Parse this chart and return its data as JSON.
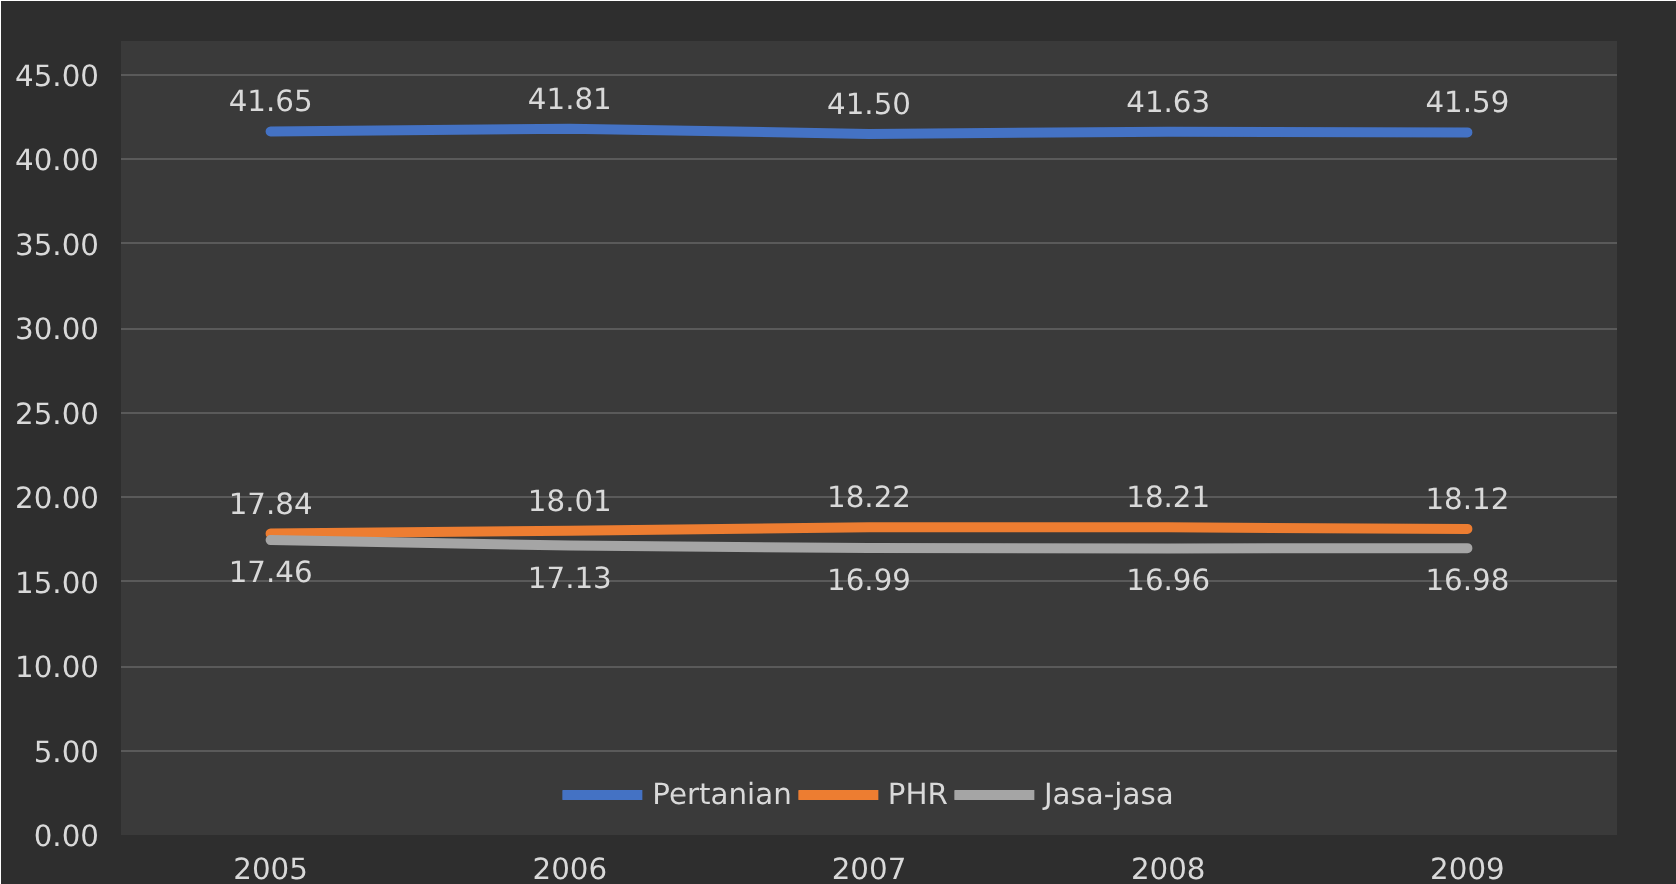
{
  "chart_data": {
    "type": "line",
    "categories": [
      "2005",
      "2006",
      "2007",
      "2008",
      "2009"
    ],
    "series": [
      {
        "name": "Pertanian",
        "color": "#4472c4",
        "values": [
          41.65,
          41.81,
          41.5,
          41.63,
          41.59
        ],
        "value_labels": [
          "41.65",
          "41.81",
          "41.50",
          "41.63",
          "41.59"
        ]
      },
      {
        "name": "PHR",
        "color": "#ed7d31",
        "values": [
          17.84,
          18.01,
          18.22,
          18.21,
          18.12
        ],
        "value_labels": [
          "17.84",
          "18.01",
          "18.22",
          "18.21",
          "18.12"
        ]
      },
      {
        "name": "Jasa-jasa",
        "color": "#a5a5a5",
        "values": [
          17.46,
          17.13,
          16.99,
          16.96,
          16.98
        ],
        "value_labels": [
          "17.46",
          "17.13",
          "16.99",
          "16.96",
          "16.98"
        ]
      }
    ],
    "ylim": [
      0,
      47
    ],
    "yticks": [
      {
        "value": 0,
        "label": "0.00"
      },
      {
        "value": 5,
        "label": "5.00"
      },
      {
        "value": 10,
        "label": "10.00"
      },
      {
        "value": 15,
        "label": "15.00"
      },
      {
        "value": 20,
        "label": "20.00"
      },
      {
        "value": 25,
        "label": "25.00"
      },
      {
        "value": 30,
        "label": "30.00"
      },
      {
        "value": 35,
        "label": "35.00"
      },
      {
        "value": 40,
        "label": "40.00"
      },
      {
        "value": 45,
        "label": "45.00"
      }
    ],
    "grid": "y",
    "legend": "bottom",
    "marker": "none",
    "line_style": "solid"
  }
}
